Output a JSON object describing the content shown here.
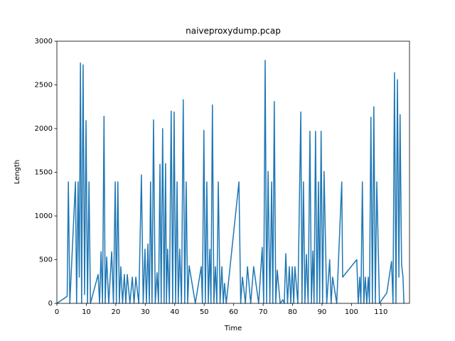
{
  "chart_data": {
    "type": "line",
    "title": "naiveproxydump.pcap",
    "x_label": "Time",
    "y_label": "Length",
    "xlim": [
      0,
      119.7
    ],
    "ylim": [
      0,
      3000
    ],
    "xticks": [
      0,
      10,
      20,
      30,
      40,
      50,
      60,
      70,
      80,
      90,
      100,
      110
    ],
    "yticks": [
      0,
      500,
      1000,
      1500,
      2000,
      2500,
      3000
    ],
    "grid": false,
    "x": [
      0,
      3.5,
      3.9,
      4.4,
      6.3,
      6.7,
      7.2,
      7.6,
      8,
      8.4,
      8.9,
      9.4,
      9.9,
      10.4,
      10.9,
      11.4,
      14,
      14.5,
      15,
      15.5,
      16,
      16.4,
      16.9,
      17.6,
      18.6,
      19.2,
      19.8,
      20.2,
      20.7,
      21.2,
      21.7,
      22.3,
      22.9,
      23.4,
      23.9,
      24.8,
      25.6,
      26.2,
      26.8,
      27.8,
      28.7,
      29.3,
      29.9,
      30.4,
      30.9,
      31.4,
      31.8,
      32.3,
      32.8,
      33.4,
      34,
      34.5,
      35,
      35.4,
      35.9,
      36.4,
      36.9,
      37.2,
      37.6,
      38.2,
      38.8,
      39.3,
      39.8,
      40.3,
      40.8,
      41.2,
      41.7,
      42.3,
      42.9,
      43.4,
      43.9,
      44.4,
      44.9,
      47,
      49,
      49.4,
      49.9,
      50.4,
      50.9,
      51.4,
      51.9,
      52.3,
      52.8,
      53.3,
      53.8,
      54.3,
      54.8,
      55.4,
      56,
      56.5,
      56.9,
      57.5,
      61.8,
      62.4,
      63,
      64,
      64.7,
      65.8,
      66.8,
      68.5,
      69.7,
      70.2,
      70.7,
      71.2,
      71.7,
      72.3,
      72.9,
      73.3,
      73.8,
      74.3,
      74.8,
      75.8,
      76.7,
      77.2,
      77.7,
      78.3,
      78.9,
      79.4,
      79.9,
      80.4,
      80.8,
      81.8,
      82.8,
      83.2,
      83.7,
      84.2,
      84.7,
      85.3,
      85.9,
      86.4,
      86.9,
      87.3,
      87.8,
      88.3,
      88.8,
      89.2,
      89.7,
      90.2,
      90.7,
      91.6,
      92.6,
      93.1,
      93.6,
      95,
      96.7,
      97,
      101.8,
      102.3,
      102.8,
      103.2,
      103.7,
      104.2,
      104.7,
      105.2,
      105.7,
      106.1,
      106.6,
      107.1,
      107.6,
      108.1,
      108.6,
      109.5,
      112,
      113.6,
      114.1,
      114.6,
      115.1,
      115.6,
      116.1,
      116.5,
      117,
      117.5,
      117.8
    ],
    "series": [
      {
        "name": "Length",
        "color": "#1f77b4",
        "values": [
          0,
          80,
          1390,
          0,
          1390,
          0,
          1390,
          300,
          2750,
          0,
          2730,
          100,
          2090,
          0,
          1390,
          0,
          330,
          0,
          590,
          0,
          2140,
          0,
          530,
          0,
          590,
          0,
          1390,
          0,
          1390,
          0,
          420,
          0,
          330,
          0,
          330,
          0,
          300,
          0,
          300,
          0,
          1470,
          0,
          620,
          0,
          680,
          0,
          1390,
          0,
          2100,
          0,
          350,
          0,
          1590,
          0,
          2000,
          0,
          1600,
          0,
          620,
          0,
          2200,
          0,
          2190,
          0,
          1390,
          0,
          620,
          0,
          2330,
          0,
          1390,
          0,
          430,
          0,
          420,
          0,
          1980,
          0,
          1390,
          0,
          620,
          0,
          2270,
          0,
          420,
          0,
          1390,
          0,
          420,
          0,
          230,
          0,
          1390,
          0,
          300,
          0,
          420,
          0,
          420,
          0,
          640,
          0,
          2780,
          0,
          1510,
          0,
          1390,
          0,
          2310,
          0,
          380,
          0,
          40,
          0,
          570,
          0,
          420,
          0,
          420,
          0,
          420,
          0,
          2190,
          0,
          1390,
          0,
          560,
          0,
          1970,
          0,
          600,
          0,
          1970,
          0,
          1390,
          0,
          1970,
          0,
          1510,
          0,
          500,
          0,
          300,
          0,
          1390,
          300,
          500,
          0,
          300,
          0,
          1390,
          0,
          300,
          0,
          300,
          0,
          2130,
          0,
          2250,
          0,
          1390,
          0,
          120,
          480,
          0,
          2640,
          0,
          2560,
          300,
          2160,
          450,
          300,
          0
        ]
      }
    ]
  }
}
